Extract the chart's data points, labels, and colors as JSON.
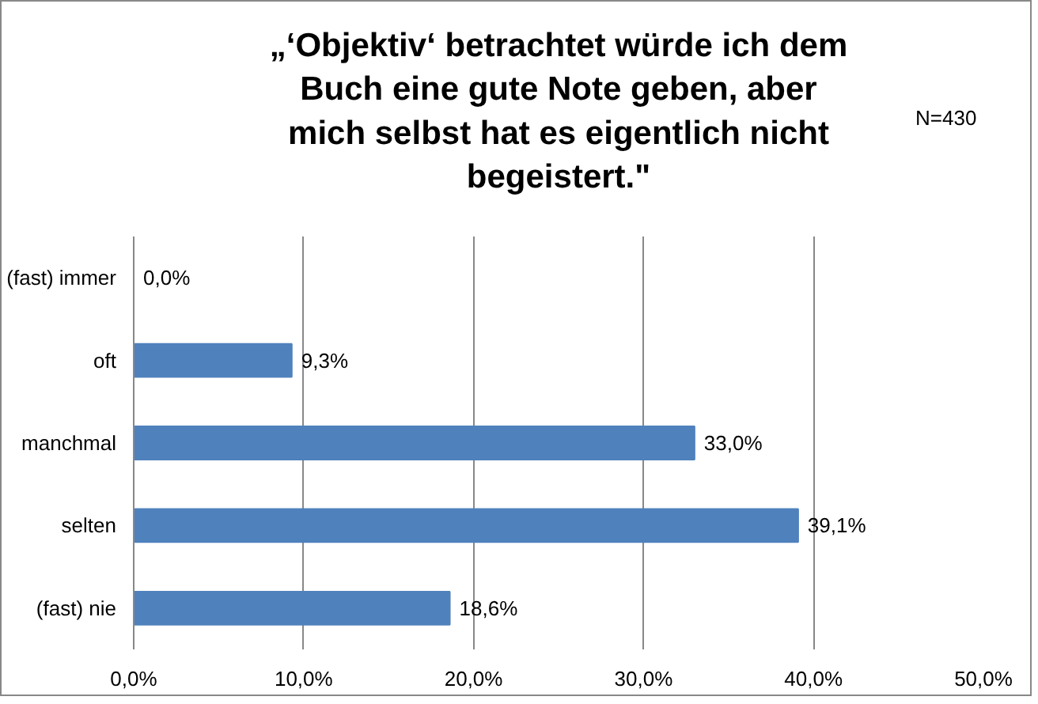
{
  "chart_data": {
    "type": "bar",
    "orientation": "horizontal",
    "title": "„‘Objektiv‘ betrachtet würde ich dem\nBuch eine gute Note geben, aber\nmich selbst hat es eigentlich nicht\nbegeistert.\"",
    "annotations": [
      "N=430"
    ],
    "categories": [
      "(fast) immer",
      "oft",
      "manchmal",
      "selten",
      "(fast) nie"
    ],
    "values": [
      0.0,
      9.3,
      33.0,
      39.1,
      18.6
    ],
    "value_labels": [
      "0,0%",
      "9,3%",
      "33,0%",
      "39,1%",
      "18,6%"
    ],
    "color": "#4f81bd",
    "xlim": [
      0,
      50
    ],
    "xticks": [
      {
        "value": 0,
        "label": "0,0%"
      },
      {
        "value": 10,
        "label": "10,0%"
      },
      {
        "value": 20,
        "label": "20,0%"
      },
      {
        "value": 30,
        "label": "30,0%"
      },
      {
        "value": 40,
        "label": "40,0%"
      },
      {
        "value": 50,
        "label": "50,0%"
      }
    ],
    "grid": "x"
  }
}
